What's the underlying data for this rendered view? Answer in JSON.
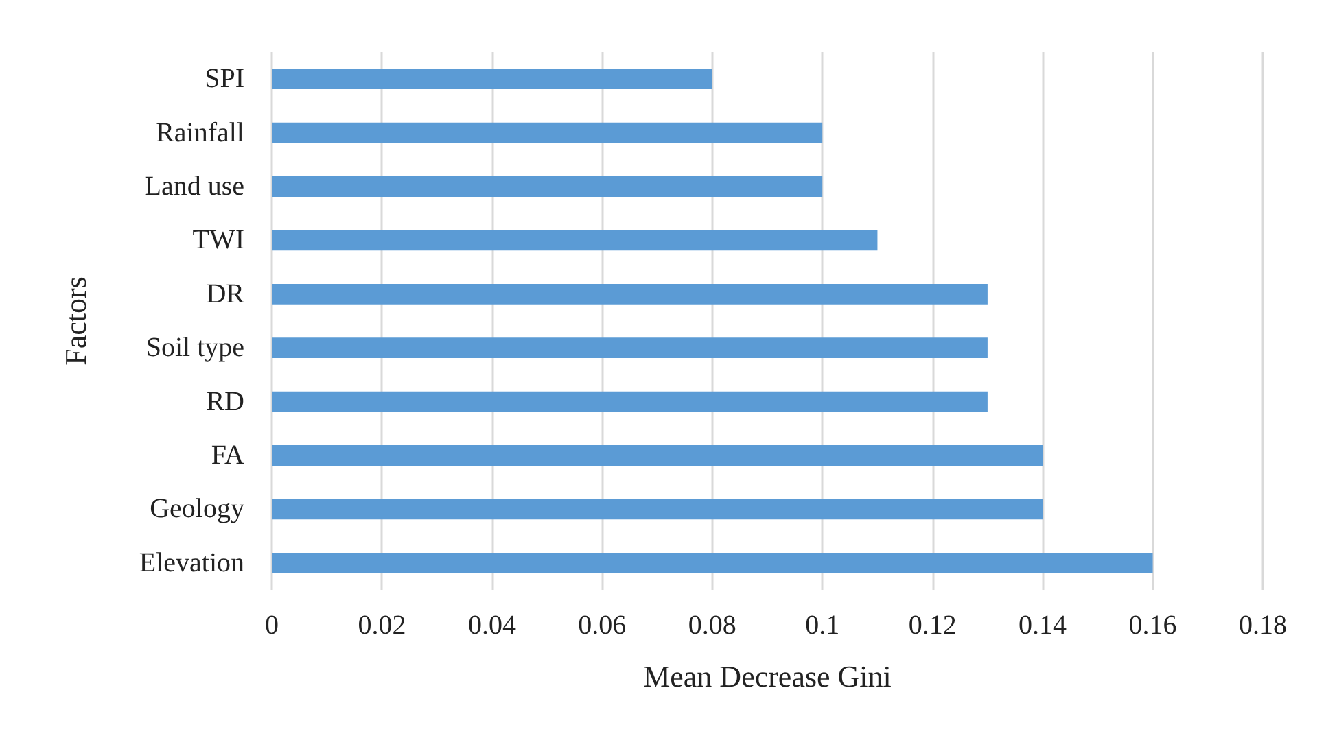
{
  "chart_data": {
    "type": "bar",
    "orientation": "horizontal",
    "xlabel": "Mean Decrease Gini",
    "ylabel": "Factors",
    "categories": [
      "SPI",
      "Rainfall",
      "Land use",
      "TWI",
      "DR",
      "Soil type",
      "RD",
      "FA",
      "Geology",
      "Elevation"
    ],
    "values": [
      0.08,
      0.1,
      0.1,
      0.11,
      0.13,
      0.13,
      0.13,
      0.14,
      0.14,
      0.16
    ],
    "color": "#5b9bd5",
    "xlim": [
      0,
      0.18
    ],
    "xticks": [
      0,
      0.02,
      0.04,
      0.06,
      0.08,
      0.1,
      0.12,
      0.14,
      0.16,
      0.18
    ],
    "grid": "x"
  }
}
